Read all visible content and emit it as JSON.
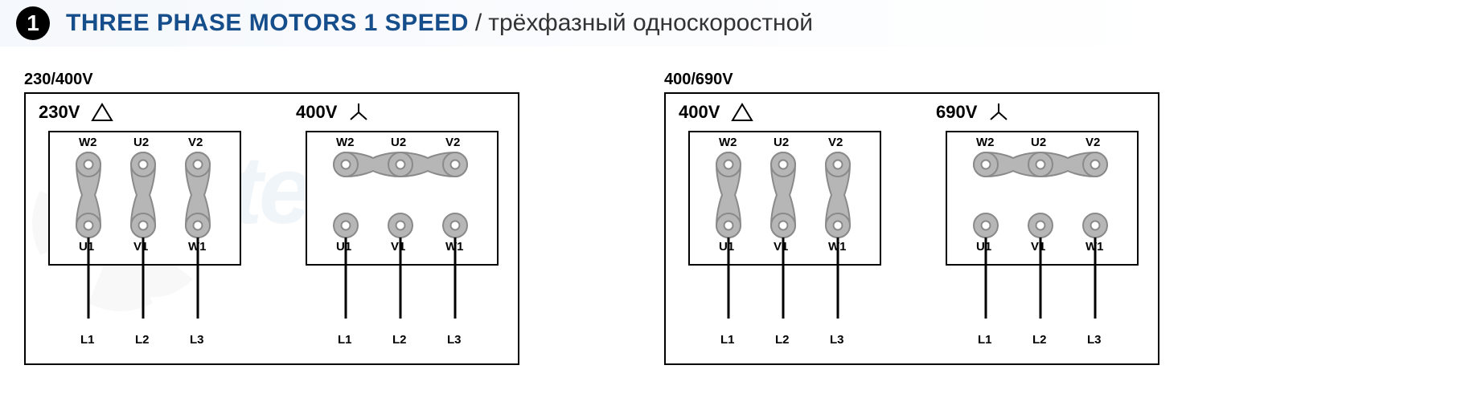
{
  "header": {
    "number": "1",
    "title_en": "THREE PHASE MOTORS 1 SPEED",
    "title_sep": " / ",
    "title_ru": "трёхфазный односкоростной"
  },
  "watermark_text": "venttel",
  "groups": [
    {
      "group_voltage_label": "230/400V",
      "panels": [
        {
          "type": "delta",
          "voltage_label": "230V",
          "top_terms": [
            "W2",
            "U2",
            "V2"
          ],
          "bot_terms": [
            "U1",
            "V1",
            "W1"
          ],
          "lines": [
            "L1",
            "L2",
            "L3"
          ],
          "link_fill": "#b6b6b6",
          "link_stroke": "#8a8a8a"
        },
        {
          "type": "wye",
          "voltage_label": "400V",
          "top_terms": [
            "W2",
            "U2",
            "V2"
          ],
          "bot_terms": [
            "U1",
            "V1",
            "W1"
          ],
          "lines": [
            "L1",
            "L2",
            "L3"
          ],
          "link_fill": "#b6b6b6",
          "link_stroke": "#8a8a8a"
        }
      ]
    },
    {
      "group_voltage_label": "400/690V",
      "panels": [
        {
          "type": "delta",
          "voltage_label": "400V",
          "top_terms": [
            "W2",
            "U2",
            "V2"
          ],
          "bot_terms": [
            "U1",
            "V1",
            "W1"
          ],
          "lines": [
            "L1",
            "L2",
            "L3"
          ],
          "link_fill": "#b6b6b6",
          "link_stroke": "#8a8a8a"
        },
        {
          "type": "wye",
          "voltage_label": "690V",
          "top_terms": [
            "W2",
            "U2",
            "V2"
          ],
          "bot_terms": [
            "U1",
            "V1",
            "W1"
          ],
          "lines": [
            "L1",
            "L2",
            "L3"
          ],
          "link_fill": "#b6b6b6",
          "link_stroke": "#8a8a8a"
        }
      ]
    }
  ],
  "diagram_style": {
    "terminal_circle_r": 15,
    "hole_r": 5.5,
    "box_border": "#000",
    "line_stroke": "#000",
    "line_width": 3
  }
}
